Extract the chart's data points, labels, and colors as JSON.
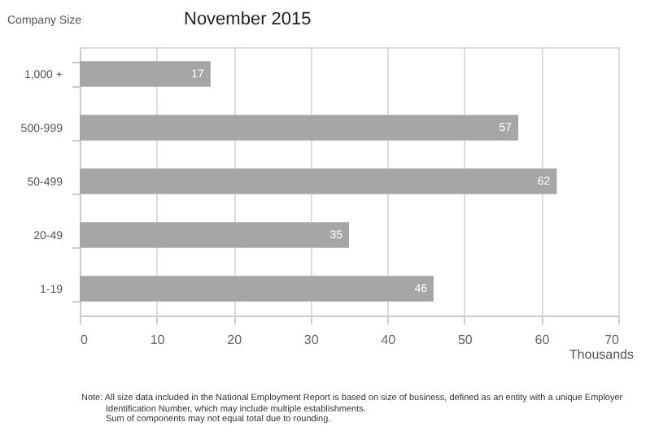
{
  "chart_data": {
    "type": "bar",
    "orientation": "horizontal",
    "title": "November 2015",
    "ylabel": "Company Size",
    "xlabel": "Thousands",
    "categories": [
      "1,000 +",
      "500-999",
      "50-499",
      "20-49",
      "1-19"
    ],
    "values": [
      17,
      57,
      62,
      35,
      46
    ],
    "color": "#a6a6a6",
    "data_labels": true,
    "xlim": [
      0,
      70
    ],
    "xticks": [
      0,
      10,
      20,
      30,
      40,
      50,
      60,
      70
    ],
    "grid": "x",
    "annotations": [
      "Note: All size data included in the National Employment Report is based on size of business, defined as an entity with a unique Employer",
      "Identification Number, which may include multiple establishments.",
      "Sum of components may not equal total due to rounding."
    ]
  }
}
